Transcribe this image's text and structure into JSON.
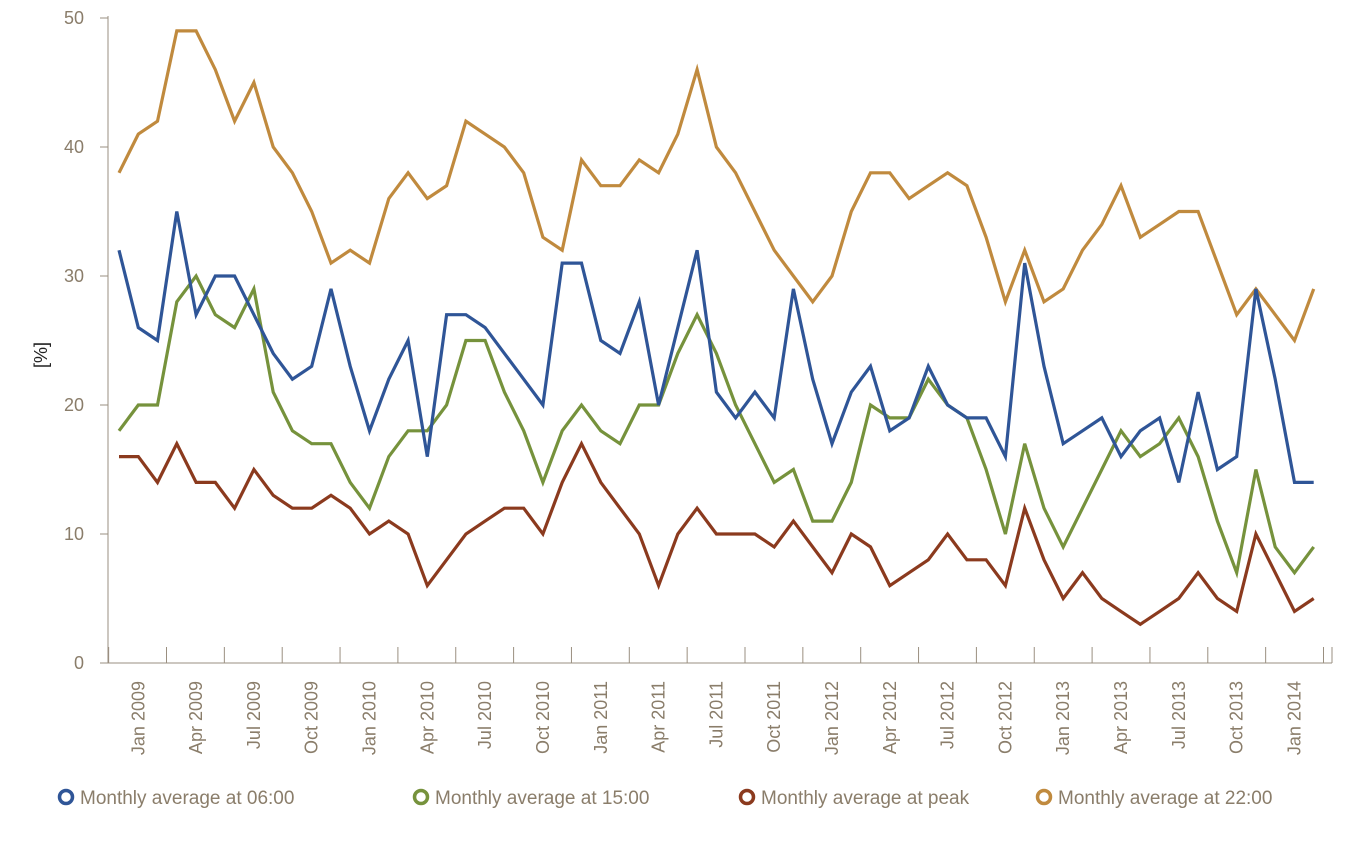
{
  "chart_data": {
    "type": "line",
    "title": "",
    "xlabel": "",
    "ylabel": "[%]",
    "ylim": [
      0,
      50
    ],
    "yticks": [
      0,
      10,
      20,
      30,
      40,
      50
    ],
    "grid": false,
    "legend_position": "bottom",
    "x": [
      "Dec 2008",
      "Jan 2009",
      "Feb 2009",
      "Mar 2009",
      "Apr 2009",
      "May 2009",
      "Jun 2009",
      "Jul 2009",
      "Aug 2009",
      "Sep 2009",
      "Oct 2009",
      "Nov 2009",
      "Dec 2009",
      "Jan 2010",
      "Feb 2010",
      "Mar 2010",
      "Apr 2010",
      "May 2010",
      "Jun 2010",
      "Jul 2010",
      "Aug 2010",
      "Sep 2010",
      "Oct 2010",
      "Nov 2010",
      "Dec 2010",
      "Jan 2011",
      "Feb 2011",
      "Mar 2011",
      "Apr 2011",
      "May 2011",
      "Jun 2011",
      "Jul 2011",
      "Aug 2011",
      "Sep 2011",
      "Oct 2011",
      "Nov 2011",
      "Dec 2011",
      "Jan 2012",
      "Feb 2012",
      "Mar 2012",
      "Apr 2012",
      "May 2012",
      "Jun 2012",
      "Jul 2012",
      "Aug 2012",
      "Sep 2012",
      "Oct 2012",
      "Nov 2012",
      "Dec 2012",
      "Jan 2013",
      "Feb 2013",
      "Mar 2013",
      "Apr 2013",
      "May 2013",
      "Jun 2013",
      "Jul 2013",
      "Aug 2013",
      "Sep 2013",
      "Oct 2013",
      "Nov 2013",
      "Dec 2013",
      "Jan 2014",
      "Feb 2014"
    ],
    "xtick_labels": [
      "Jan 2009",
      "Apr 2009",
      "Jul 2009",
      "Oct 2009",
      "Jan 2010",
      "Apr 2010",
      "Jul 2010",
      "Oct 2010",
      "Jan 2011",
      "Apr 2011",
      "Jul 2011",
      "Oct 2011",
      "Jan 2012",
      "Apr 2012",
      "Jul 2012",
      "Oct 2012",
      "Jan 2013",
      "Apr 2013",
      "Jul 2013",
      "Oct 2013",
      "Jan 2014"
    ],
    "series": [
      {
        "name": "Monthly average at 06:00",
        "color": "#2f5597",
        "values": [
          32,
          26,
          25,
          35,
          27,
          30,
          30,
          27,
          24,
          22,
          23,
          29,
          23,
          18,
          22,
          25,
          16,
          27,
          27,
          26,
          24,
          22,
          20,
          31,
          31,
          25,
          24,
          28,
          20,
          26,
          32,
          21,
          19,
          21,
          19,
          29,
          22,
          17,
          21,
          23,
          18,
          19,
          23,
          20,
          19,
          19,
          16,
          31,
          23,
          17,
          18,
          19,
          16,
          18,
          19,
          14,
          21,
          15,
          16,
          29,
          22,
          14,
          14
        ]
      },
      {
        "name": "Monthly average at 15:00",
        "color": "#76923c",
        "values": [
          18,
          20,
          20,
          28,
          30,
          27,
          26,
          29,
          21,
          18,
          17,
          17,
          14,
          12,
          16,
          18,
          18,
          20,
          25,
          25,
          21,
          18,
          14,
          18,
          20,
          18,
          17,
          20,
          20,
          24,
          27,
          24,
          20,
          17,
          14,
          15,
          11,
          11,
          14,
          20,
          19,
          19,
          22,
          20,
          19,
          15,
          10,
          17,
          12,
          9,
          12,
          15,
          18,
          16,
          17,
          19,
          16,
          11,
          7,
          15,
          9,
          7,
          9
        ]
      },
      {
        "name": "Monthly average at peak",
        "color": "#8b3a1e",
        "values": [
          16,
          16,
          14,
          17,
          14,
          14,
          12,
          15,
          13,
          12,
          12,
          13,
          12,
          10,
          11,
          10,
          6,
          8,
          10,
          11,
          12,
          12,
          10,
          14,
          17,
          14,
          12,
          10,
          6,
          10,
          12,
          10,
          10,
          10,
          9,
          11,
          9,
          7,
          10,
          9,
          6,
          7,
          8,
          10,
          8,
          8,
          6,
          12,
          8,
          5,
          7,
          5,
          4,
          3,
          4,
          5,
          7,
          5,
          4,
          10,
          7,
          4,
          5
        ]
      },
      {
        "name": "Monthly average at 22:00",
        "color": "#c08a3e",
        "values": [
          38,
          41,
          42,
          49,
          49,
          46,
          42,
          45,
          40,
          38,
          35,
          31,
          32,
          31,
          36,
          38,
          36,
          37,
          42,
          41,
          40,
          38,
          33,
          32,
          39,
          37,
          37,
          39,
          38,
          41,
          46,
          40,
          38,
          35,
          32,
          30,
          28,
          30,
          35,
          38,
          38,
          36,
          37,
          38,
          37,
          33,
          28,
          32,
          28,
          29,
          32,
          34,
          37,
          33,
          34,
          35,
          35,
          31,
          27,
          29,
          27,
          25,
          29
        ]
      }
    ]
  }
}
